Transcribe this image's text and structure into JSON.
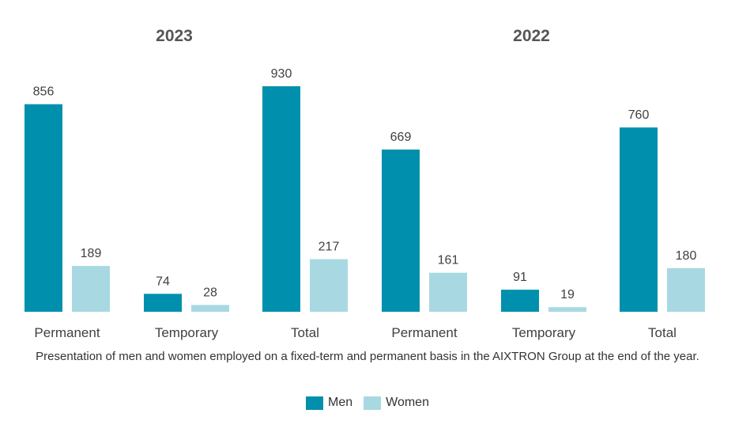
{
  "chart_data": {
    "type": "bar",
    "panels": [
      {
        "title": "2023",
        "categories": [
          "Permanent",
          "Temporary",
          "Total"
        ]
      },
      {
        "title": "2022",
        "categories": [
          "Permanent",
          "Temporary",
          "Total"
        ]
      }
    ],
    "series": [
      {
        "name": "Men",
        "color": "#0090ad",
        "values": [
          856,
          74,
          930,
          669,
          91,
          760
        ]
      },
      {
        "name": "Women",
        "color": "#a8d9e2",
        "values": [
          189,
          28,
          217,
          161,
          19,
          180
        ]
      }
    ],
    "ylim": [
      0,
      930
    ],
    "grid": false,
    "legend_position": "bottom",
    "data_labels": true
  },
  "caption": "Presentation of men and women employed on a fixed-term and permanent basis in the AIXTRON Group at the end of the year.",
  "legend": {
    "items": [
      {
        "label": "Men",
        "color": "#0090ad"
      },
      {
        "label": "Women",
        "color": "#a8d9e2"
      }
    ]
  }
}
